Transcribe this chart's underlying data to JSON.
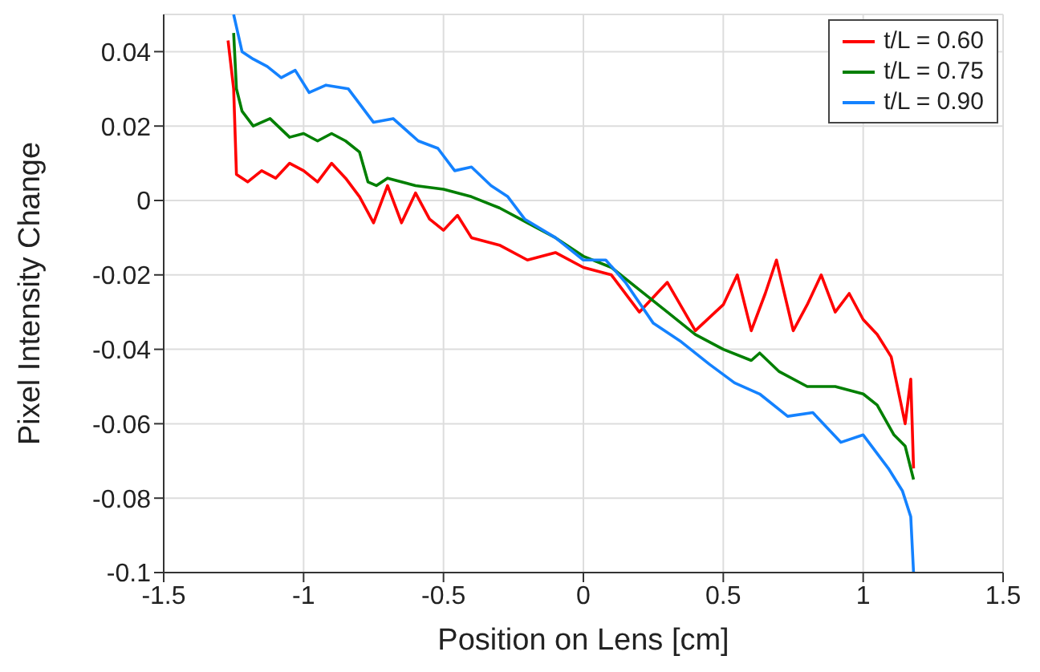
{
  "chart_data": {
    "type": "line",
    "xlabel": "Position on Lens [cm]",
    "ylabel": "Pixel Intensity Change",
    "xlim": [
      -1.5,
      1.5
    ],
    "xticks": [
      -1.5,
      -1,
      -0.5,
      0,
      0.5,
      1,
      1.5
    ],
    "ylim": [
      -0.1,
      0.05
    ],
    "yticks": [
      -0.1,
      -0.08,
      -0.06,
      -0.04,
      -0.02,
      0,
      0.02,
      0.04
    ],
    "grid": true,
    "legend": "top right",
    "marker": "none",
    "line_style": "solid",
    "series": [
      {
        "name": "t/L = 0.60",
        "color": "#ff0000",
        "x": [
          -1.27,
          -1.25,
          -1.24,
          -1.2,
          -1.15,
          -1.1,
          -1.05,
          -1.0,
          -0.95,
          -0.9,
          -0.85,
          -0.8,
          -0.75,
          -0.7,
          -0.65,
          -0.6,
          -0.55,
          -0.5,
          -0.45,
          -0.4,
          -0.3,
          -0.2,
          -0.1,
          0,
          0.1,
          0.2,
          0.3,
          0.4,
          0.5,
          0.55,
          0.6,
          0.65,
          0.69,
          0.75,
          0.8,
          0.85,
          0.9,
          0.95,
          1.0,
          1.05,
          1.1,
          1.15,
          1.17,
          1.18
        ],
        "values": [
          0.043,
          0.03,
          0.007,
          0.005,
          0.008,
          0.006,
          0.01,
          0.008,
          0.005,
          0.01,
          0.006,
          0.001,
          -0.006,
          0.004,
          -0.006,
          0.002,
          -0.005,
          -0.008,
          -0.004,
          -0.01,
          -0.012,
          -0.016,
          -0.014,
          -0.018,
          -0.02,
          -0.03,
          -0.022,
          -0.035,
          -0.028,
          -0.02,
          -0.035,
          -0.025,
          -0.016,
          -0.035,
          -0.028,
          -0.02,
          -0.03,
          -0.025,
          -0.032,
          -0.036,
          -0.042,
          -0.06,
          -0.048,
          -0.072
        ]
      },
      {
        "name": "t/L = 0.75",
        "color": "#007f00",
        "x": [
          -1.25,
          -1.24,
          -1.22,
          -1.18,
          -1.12,
          -1.05,
          -1.0,
          -0.95,
          -0.9,
          -0.85,
          -0.8,
          -0.77,
          -0.74,
          -0.7,
          -0.6,
          -0.5,
          -0.4,
          -0.3,
          -0.2,
          -0.1,
          0,
          0.1,
          0.2,
          0.3,
          0.4,
          0.5,
          0.6,
          0.63,
          0.7,
          0.8,
          0.9,
          1.0,
          1.05,
          1.11,
          1.15,
          1.18
        ],
        "values": [
          0.045,
          0.03,
          0.024,
          0.02,
          0.022,
          0.017,
          0.018,
          0.016,
          0.018,
          0.016,
          0.013,
          0.005,
          0.004,
          0.006,
          0.004,
          0.003,
          0.001,
          -0.002,
          -0.006,
          -0.01,
          -0.015,
          -0.018,
          -0.024,
          -0.03,
          -0.036,
          -0.04,
          -0.043,
          -0.041,
          -0.046,
          -0.05,
          -0.05,
          -0.052,
          -0.055,
          -0.063,
          -0.066,
          -0.075
        ]
      },
      {
        "name": "t/L = 0.90",
        "color": "#1482ff",
        "x": [
          -1.25,
          -1.22,
          -1.18,
          -1.13,
          -1.08,
          -1.03,
          -0.98,
          -0.92,
          -0.84,
          -0.8,
          -0.75,
          -0.68,
          -0.59,
          -0.52,
          -0.46,
          -0.4,
          -0.33,
          -0.27,
          -0.21,
          -0.1,
          0,
          0.08,
          0.15,
          0.25,
          0.35,
          0.45,
          0.54,
          0.63,
          0.73,
          0.82,
          0.92,
          1.0,
          1.09,
          1.14,
          1.17,
          1.18
        ],
        "values": [
          0.05,
          0.04,
          0.038,
          0.036,
          0.033,
          0.035,
          0.029,
          0.031,
          0.03,
          0.026,
          0.021,
          0.022,
          0.016,
          0.014,
          0.008,
          0.009,
          0.004,
          0.001,
          -0.005,
          -0.01,
          -0.016,
          -0.016,
          -0.022,
          -0.033,
          -0.038,
          -0.044,
          -0.049,
          -0.052,
          -0.058,
          -0.057,
          -0.065,
          -0.063,
          -0.072,
          -0.078,
          -0.085,
          -0.1
        ]
      }
    ]
  }
}
